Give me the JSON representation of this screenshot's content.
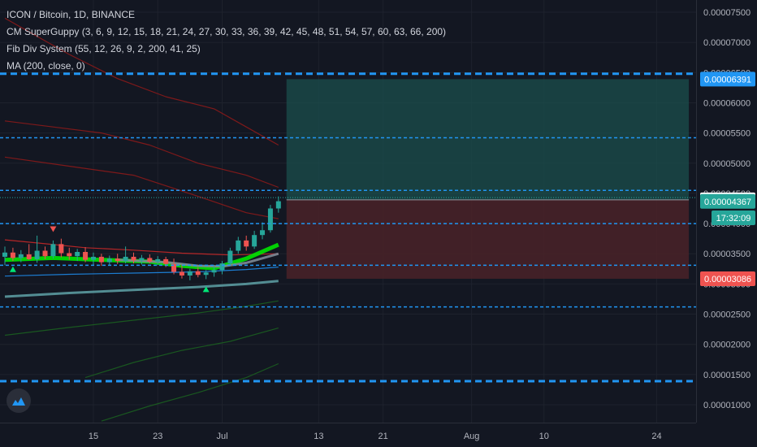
{
  "header": {
    "symbol_line": "ICON / Bitcoin, 1D, BINANCE",
    "indicators": [
      "CM SuperGuppy (3, 6, 9, 12, 15, 18, 21, 24, 27, 30, 33, 36, 39, 42, 45, 48, 51, 54, 57, 60, 63, 66, 200)",
      "Fib Div System (55, 12, 26, 9, 2, 200, 41, 25)",
      "MA (200, close, 0)"
    ]
  },
  "colors": {
    "background": "#131722",
    "up_candle": "#26a69a",
    "down_candle": "#ef5350",
    "dash_line": "#2196f3",
    "profit_zone": "#1b4f4c",
    "loss_zone": "#4a2228",
    "guppy_fast": "#00e600",
    "ma200": "#5b9aa0"
  },
  "chart_data": {
    "type": "candlestick",
    "y_axis": {
      "ylim": [
        7.5e-06,
        8e-06
      ],
      "tick_labels": [
        "0.00007500",
        "0.00007000",
        "0.00006500",
        "0.00006000",
        "0.00005500",
        "0.00005000",
        "0.00004500",
        "0.00004000",
        "0.00003500",
        "0.00003000",
        "0.00002500",
        "0.00002000",
        "0.00001500",
        "0.00001000"
      ],
      "tick_values": [
        7.5e-05,
        7e-05,
        6.5e-05,
        6e-05,
        5.5e-05,
        5e-05,
        4.5e-05,
        4e-05,
        3.5e-05,
        3e-05,
        2.5e-05,
        2e-05,
        1.5e-05,
        1e-05
      ],
      "range": [
        7.5e-06,
        7.85e-05
      ]
    },
    "x_axis": {
      "tick_labels": [
        "15",
        "23",
        "Jul",
        "13",
        "21",
        "Aug",
        "10",
        "24"
      ],
      "tick_days": [
        15,
        23,
        31,
        43,
        51,
        62,
        71,
        85
      ]
    },
    "x_range_days": [
      4,
      90
    ],
    "price_labels": [
      {
        "text": "0.00006391",
        "value": 6.391e-05,
        "bg": "#2196f3",
        "fg": "#ffffff"
      },
      {
        "text": "0.00004393",
        "value": 4.393e-05,
        "bg": "#ffffff",
        "fg": "#131722"
      },
      {
        "text": "0.00004367",
        "value": 4.367e-05,
        "bg": "#26a69a",
        "fg": "#ffffff"
      },
      {
        "text": "17:32:09",
        "value": 4.095e-05,
        "bg": "#26a69a",
        "fg": "#ffffff"
      },
      {
        "text": "0.00003086",
        "value": 3.086e-05,
        "bg": "#ef5350",
        "fg": "#ffffff"
      }
    ],
    "horizontal_lines": [
      {
        "value": 6.48e-05,
        "style": "thick-dash"
      },
      {
        "value": 5.42e-05,
        "style": "dash"
      },
      {
        "value": 4.55e-05,
        "style": "dash"
      },
      {
        "value": 4.43e-05,
        "style": "dotted-teal"
      },
      {
        "value": 4e-05,
        "style": "dash"
      },
      {
        "value": 3.31e-05,
        "style": "dash"
      },
      {
        "value": 2.62e-05,
        "style": "dash"
      },
      {
        "value": 1.39e-05,
        "style": "thick-dash"
      }
    ],
    "position_tool": {
      "start_day": 39,
      "end_day": 89,
      "entry": 4.393e-05,
      "target": 6.391e-05,
      "stop": 3.086e-05
    },
    "candles": [
      {
        "day": 4,
        "o": 3.45e-05,
        "h": 3.62e-05,
        "l": 3.31e-05,
        "c": 3.52e-05
      },
      {
        "day": 5,
        "o": 3.52e-05,
        "h": 3.6e-05,
        "l": 3.38e-05,
        "c": 3.43e-05
      },
      {
        "day": 6,
        "o": 3.43e-05,
        "h": 3.56e-05,
        "l": 3.36e-05,
        "c": 3.49e-05
      },
      {
        "day": 7,
        "o": 3.49e-05,
        "h": 3.66e-05,
        "l": 3.4e-05,
        "c": 3.41e-05
      },
      {
        "day": 8,
        "o": 3.41e-05,
        "h": 3.8e-05,
        "l": 3.35e-05,
        "c": 3.55e-05
      },
      {
        "day": 9,
        "o": 3.55e-05,
        "h": 3.62e-05,
        "l": 3.41e-05,
        "c": 3.46e-05
      },
      {
        "day": 10,
        "o": 3.46e-05,
        "h": 3.72e-05,
        "l": 3.42e-05,
        "c": 3.66e-05
      },
      {
        "day": 11,
        "o": 3.66e-05,
        "h": 3.75e-05,
        "l": 3.44e-05,
        "c": 3.51e-05
      },
      {
        "day": 12,
        "o": 3.51e-05,
        "h": 3.6e-05,
        "l": 3.4e-05,
        "c": 3.46e-05
      },
      {
        "day": 13,
        "o": 3.46e-05,
        "h": 3.58e-05,
        "l": 3.38e-05,
        "c": 3.53e-05
      },
      {
        "day": 14,
        "o": 3.53e-05,
        "h": 3.61e-05,
        "l": 3.36e-05,
        "c": 3.4e-05
      },
      {
        "day": 15,
        "o": 3.4e-05,
        "h": 3.52e-05,
        "l": 3.31e-05,
        "c": 3.45e-05
      },
      {
        "day": 16,
        "o": 3.45e-05,
        "h": 3.5e-05,
        "l": 3.3e-05,
        "c": 3.36e-05
      },
      {
        "day": 17,
        "o": 3.36e-05,
        "h": 3.47e-05,
        "l": 3.3e-05,
        "c": 3.42e-05
      },
      {
        "day": 18,
        "o": 3.42e-05,
        "h": 3.5e-05,
        "l": 3.33e-05,
        "c": 3.38e-05
      },
      {
        "day": 19,
        "o": 3.38e-05,
        "h": 3.62e-05,
        "l": 3.34e-05,
        "c": 3.45e-05
      },
      {
        "day": 20,
        "o": 3.45e-05,
        "h": 3.52e-05,
        "l": 3.34e-05,
        "c": 3.39e-05
      },
      {
        "day": 21,
        "o": 3.39e-05,
        "h": 3.48e-05,
        "l": 3.32e-05,
        "c": 3.43e-05
      },
      {
        "day": 22,
        "o": 3.43e-05,
        "h": 3.49e-05,
        "l": 3.34e-05,
        "c": 3.37e-05
      },
      {
        "day": 23,
        "o": 3.37e-05,
        "h": 3.46e-05,
        "l": 3.31e-05,
        "c": 3.41e-05
      },
      {
        "day": 24,
        "o": 3.41e-05,
        "h": 3.45e-05,
        "l": 3.28e-05,
        "c": 3.33e-05
      },
      {
        "day": 25,
        "o": 3.33e-05,
        "h": 3.42e-05,
        "l": 3.16e-05,
        "c": 3.2e-05
      },
      {
        "day": 26,
        "o": 3.2e-05,
        "h": 3.31e-05,
        "l": 3.09e-05,
        "c": 3.14e-05
      },
      {
        "day": 27,
        "o": 3.14e-05,
        "h": 3.25e-05,
        "l": 3.06e-05,
        "c": 3.21e-05
      },
      {
        "day": 28,
        "o": 3.21e-05,
        "h": 3.27e-05,
        "l": 3.11e-05,
        "c": 3.15e-05
      },
      {
        "day": 29,
        "o": 3.15e-05,
        "h": 3.23e-05,
        "l": 3.08e-05,
        "c": 3.19e-05
      },
      {
        "day": 30,
        "o": 3.19e-05,
        "h": 3.29e-05,
        "l": 3.12e-05,
        "c": 3.23e-05
      },
      {
        "day": 31,
        "o": 3.23e-05,
        "h": 3.38e-05,
        "l": 3.16e-05,
        "c": 3.34e-05
      },
      {
        "day": 32,
        "o": 3.34e-05,
        "h": 3.6e-05,
        "l": 3.3e-05,
        "c": 3.55e-05
      },
      {
        "day": 33,
        "o": 3.55e-05,
        "h": 3.78e-05,
        "l": 3.5e-05,
        "c": 3.72e-05
      },
      {
        "day": 34,
        "o": 3.72e-05,
        "h": 3.8e-05,
        "l": 3.55e-05,
        "c": 3.62e-05
      },
      {
        "day": 35,
        "o": 3.62e-05,
        "h": 3.88e-05,
        "l": 3.58e-05,
        "c": 3.81e-05
      },
      {
        "day": 36,
        "o": 3.81e-05,
        "h": 4.02e-05,
        "l": 3.74e-05,
        "c": 3.89e-05
      },
      {
        "day": 37,
        "o": 3.89e-05,
        "h": 4.31e-05,
        "l": 3.85e-05,
        "c": 4.25e-05
      },
      {
        "day": 38,
        "o": 4.25e-05,
        "h": 4.45e-05,
        "l": 4.18e-05,
        "c": 4.37e-05
      }
    ],
    "markers": [
      {
        "day": 10,
        "value": 3.9e-05,
        "dir": "down",
        "color": "#ef5350"
      },
      {
        "day": 5,
        "value": 3.25e-05,
        "dir": "up",
        "color": "#00e676"
      },
      {
        "day": 29,
        "value": 2.92e-05,
        "dir": "up",
        "color": "#00e676"
      }
    ],
    "lines": [
      {
        "name": "",
        "color": "#8b1a1a",
        "points": [
          [
            4,
            7.4e-05
          ],
          [
            8,
            7.1e-05
          ],
          [
            12,
            6.8e-05
          ],
          [
            18,
            6.4e-05
          ],
          [
            24,
            6.1e-05
          ],
          [
            30,
            5.9e-05
          ],
          [
            34,
            5.6e-05
          ],
          [
            38,
            5.3e-05
          ]
        ]
      },
      {
        "name": "",
        "color": "#8b1a1a",
        "points": [
          [
            4,
            5.7e-05
          ],
          [
            10,
            5.6e-05
          ],
          [
            16,
            5.5e-05
          ],
          [
            22,
            5.3e-05
          ],
          [
            28,
            5e-05
          ],
          [
            34,
            4.8e-05
          ],
          [
            38,
            4.6e-05
          ]
        ]
      },
      {
        "name": "",
        "color": "#8b1a1a",
        "points": [
          [
            4,
            5.1e-05
          ],
          [
            12,
            4.95e-05
          ],
          [
            20,
            4.8e-05
          ],
          [
            28,
            4.45e-05
          ],
          [
            34,
            4.18e-05
          ],
          [
            38,
            4.08e-05
          ]
        ]
      },
      {
        "name": "",
        "color": "#c62828",
        "points": [
          [
            4,
            3.73e-05
          ],
          [
            8,
            3.68e-05
          ],
          [
            14,
            3.6e-05
          ],
          [
            20,
            3.56e-05
          ],
          [
            26,
            3.51e-05
          ],
          [
            32,
            3.48e-05
          ],
          [
            38,
            3.5e-05
          ]
        ]
      },
      {
        "name": "",
        "color": "#00e600",
        "points": [
          [
            4,
            3.4e-05
          ],
          [
            10,
            3.43e-05
          ],
          [
            16,
            3.4e-05
          ],
          [
            22,
            3.37e-05
          ],
          [
            26,
            3.3e-05
          ],
          [
            30,
            3.26e-05
          ],
          [
            34,
            3.42e-05
          ],
          [
            38,
            3.65e-05
          ]
        ]
      },
      {
        "name": "",
        "color": "#7e8a96",
        "points": [
          [
            18,
            3.4e-05
          ],
          [
            24,
            3.36e-05
          ],
          [
            28,
            3.3e-05
          ],
          [
            31,
            3.29e-05
          ],
          [
            34,
            3.35e-05
          ],
          [
            38,
            3.5e-05
          ]
        ]
      },
      {
        "name": "",
        "color": "#1e88e5",
        "points": [
          [
            4,
            3.13e-05
          ],
          [
            12,
            3.16e-05
          ],
          [
            20,
            3.18e-05
          ],
          [
            28,
            3.2e-05
          ],
          [
            34,
            3.24e-05
          ],
          [
            38,
            3.28e-05
          ]
        ]
      },
      {
        "name": "",
        "color": "#5b9aa0",
        "points": [
          [
            4,
            2.79e-05
          ],
          [
            12,
            2.85e-05
          ],
          [
            20,
            2.9e-05
          ],
          [
            28,
            2.95e-05
          ],
          [
            34,
            3e-05
          ],
          [
            38,
            3.05e-05
          ]
        ]
      },
      {
        "name": "",
        "color": "#1b5e20",
        "points": [
          [
            4,
            2.15e-05
          ],
          [
            12,
            2.28e-05
          ],
          [
            20,
            2.4e-05
          ],
          [
            28,
            2.52e-05
          ],
          [
            34,
            2.63e-05
          ],
          [
            38,
            2.72e-05
          ]
        ]
      },
      {
        "name": "",
        "color": "#1b5e20",
        "points": [
          [
            14,
            1.45e-05
          ],
          [
            20,
            1.7e-05
          ],
          [
            26,
            1.9e-05
          ],
          [
            32,
            2.05e-05
          ],
          [
            38,
            2.27e-05
          ]
        ]
      },
      {
        "name": "",
        "color": "#1b5e20",
        "points": [
          [
            16,
            7.3e-06
          ],
          [
            22,
            9.8e-06
          ],
          [
            28,
            1.2e-05
          ],
          [
            34,
            1.45e-05
          ],
          [
            38,
            1.68e-05
          ]
        ]
      }
    ]
  }
}
